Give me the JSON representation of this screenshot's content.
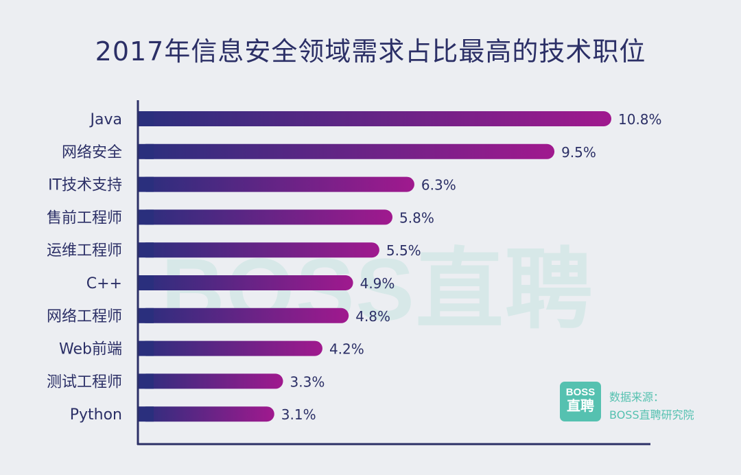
{
  "title": "2017年信息安全领域需求占比最高的技术职位",
  "watermark": "BOSS直聘",
  "logo": {
    "line1": "BOSS",
    "line2": "直聘"
  },
  "source": {
    "label": "数据来源：",
    "name": "BOSS直聘研究院"
  },
  "colors": {
    "bar_start": "#2a2f7d",
    "bar_end": "#a0198e",
    "axis": "#2b2f66",
    "label": "#2b2f66",
    "brand": "#55c1b0"
  },
  "chart_data": {
    "type": "bar",
    "orientation": "horizontal",
    "title": "2017年信息安全领域需求占比最高的技术职位",
    "categories": [
      "Java",
      "网络安全",
      "IT技术支持",
      "售前工程师",
      "运维工程师",
      "C++",
      "网络工程师",
      "Web前端",
      "测试工程师",
      "Python"
    ],
    "values": [
      10.8,
      9.5,
      6.3,
      5.8,
      5.5,
      4.9,
      4.8,
      4.2,
      3.3,
      3.1
    ],
    "value_labels": [
      "10.8%",
      "9.5%",
      "6.3%",
      "5.8%",
      "5.5%",
      "4.9%",
      "4.8%",
      "4.2%",
      "3.3%",
      "3.1%"
    ],
    "unit": "%",
    "xlim": [
      0,
      10.8
    ],
    "grid": false
  }
}
